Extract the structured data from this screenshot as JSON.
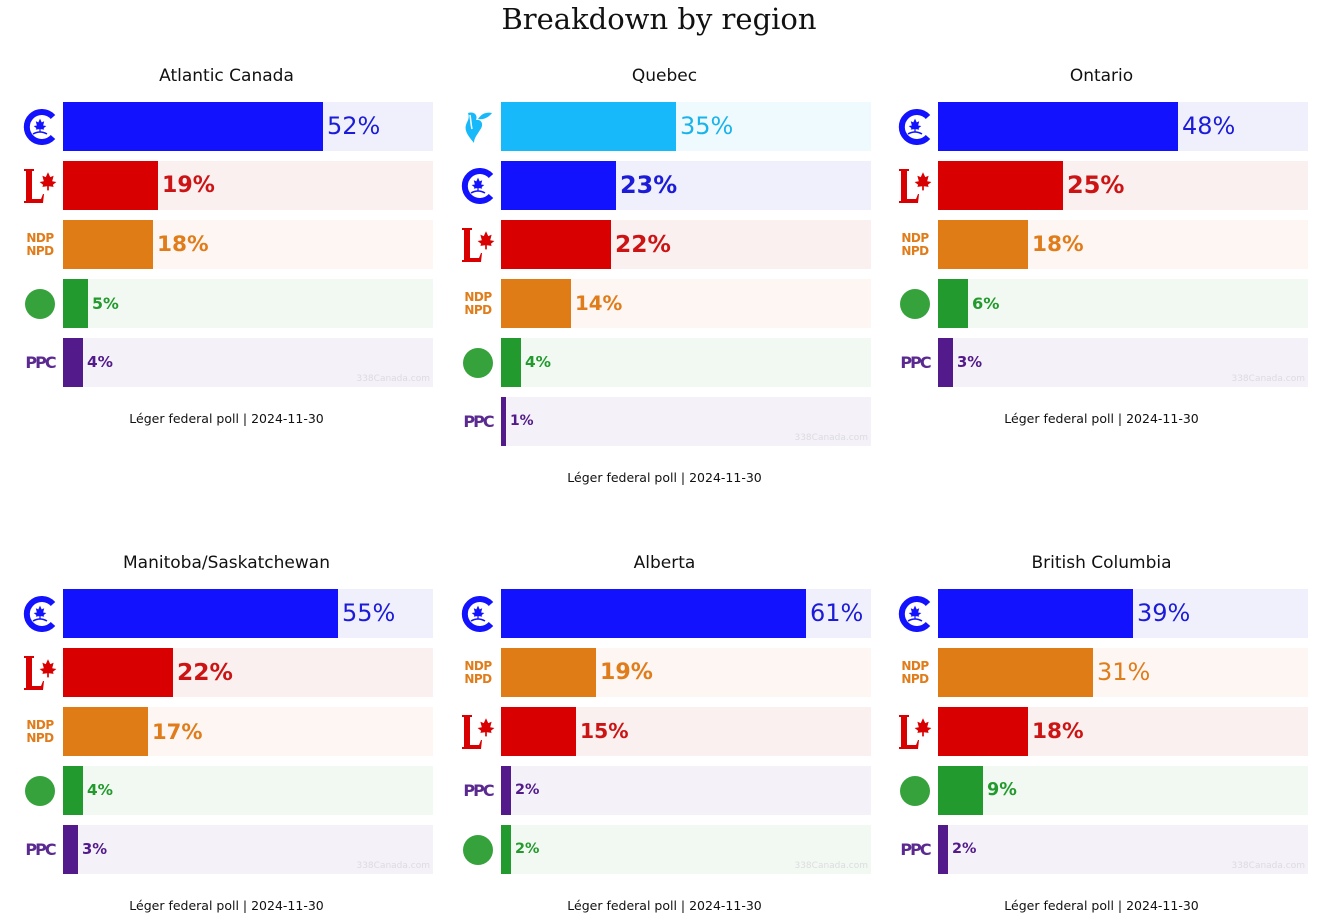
{
  "title": "Breakdown by region",
  "watermark": "338Canada.com",
  "parties": {
    "CPC": {
      "color": "#1212ff",
      "track": "#f0f0fd",
      "text": "#1c1cd8",
      "logo": "cpc-logo-icon"
    },
    "LPC": {
      "color": "#d80000",
      "track": "#fbf0f0",
      "text": "#cc1414",
      "logo": "lpc-logo-icon"
    },
    "NDP": {
      "color": "#e07c15",
      "track": "#fdf6f2",
      "text": "#e07c1a",
      "logo": "ndp-logo-icon",
      "logo_text": [
        "NDP",
        "NPD"
      ]
    },
    "GPC": {
      "color": "#229a2d",
      "track": "#f2f9f2",
      "text": "#229a2d",
      "logo": "gpc-logo-icon"
    },
    "PPC": {
      "color": "#521a8a",
      "track": "#f4f1f8",
      "text": "#521a8a",
      "logo": "ppc-logo-icon",
      "logo_text": "PPC"
    },
    "BQ": {
      "color": "#17b9fa",
      "track": "#effaff",
      "text": "#1ab4ea",
      "logo": "bq-logo-icon"
    }
  },
  "chart_data": [
    {
      "type": "bar",
      "title": "Atlantic Canada",
      "categories": [
        "CPC",
        "LPC",
        "NDP",
        "GPC",
        "PPC"
      ],
      "values": [
        52,
        19,
        18,
        5,
        4
      ],
      "labels": [
        "52%",
        "19%",
        "18%",
        "5%",
        "4%"
      ],
      "footer": "Léger federal poll | 2024-11-30"
    },
    {
      "type": "bar",
      "title": "Quebec",
      "categories": [
        "BQ",
        "CPC",
        "LPC",
        "NDP",
        "GPC",
        "PPC"
      ],
      "values": [
        35,
        23,
        22,
        14,
        4,
        1
      ],
      "labels": [
        "35%",
        "23%",
        "22%",
        "14%",
        "4%",
        "1%"
      ],
      "footer": "Léger federal poll | 2024-11-30"
    },
    {
      "type": "bar",
      "title": "Ontario",
      "categories": [
        "CPC",
        "LPC",
        "NDP",
        "GPC",
        "PPC"
      ],
      "values": [
        48,
        25,
        18,
        6,
        3
      ],
      "labels": [
        "48%",
        "25%",
        "18%",
        "6%",
        "3%"
      ],
      "footer": "Léger federal poll | 2024-11-30"
    },
    {
      "type": "bar",
      "title": "Manitoba/Saskatchewan",
      "categories": [
        "CPC",
        "LPC",
        "NDP",
        "GPC",
        "PPC"
      ],
      "values": [
        55,
        22,
        17,
        4,
        3
      ],
      "labels": [
        "55%",
        "22%",
        "17%",
        "4%",
        "3%"
      ],
      "footer": "Léger federal poll | 2024-11-30"
    },
    {
      "type": "bar",
      "title": "Alberta",
      "categories": [
        "CPC",
        "NDP",
        "LPC",
        "PPC",
        "GPC"
      ],
      "values": [
        61,
        19,
        15,
        2,
        2
      ],
      "labels": [
        "61%",
        "19%",
        "15%",
        "2%",
        "2%"
      ],
      "footer": "Léger federal poll | 2024-11-30"
    },
    {
      "type": "bar",
      "title": "British Columbia",
      "categories": [
        "CPC",
        "NDP",
        "LPC",
        "GPC",
        "PPC"
      ],
      "values": [
        39,
        31,
        18,
        9,
        2
      ],
      "labels": [
        "39%",
        "31%",
        "18%",
        "9%",
        "2%"
      ],
      "footer": "Léger federal poll | 2024-11-30"
    }
  ],
  "xlim": [
    0,
    74
  ]
}
